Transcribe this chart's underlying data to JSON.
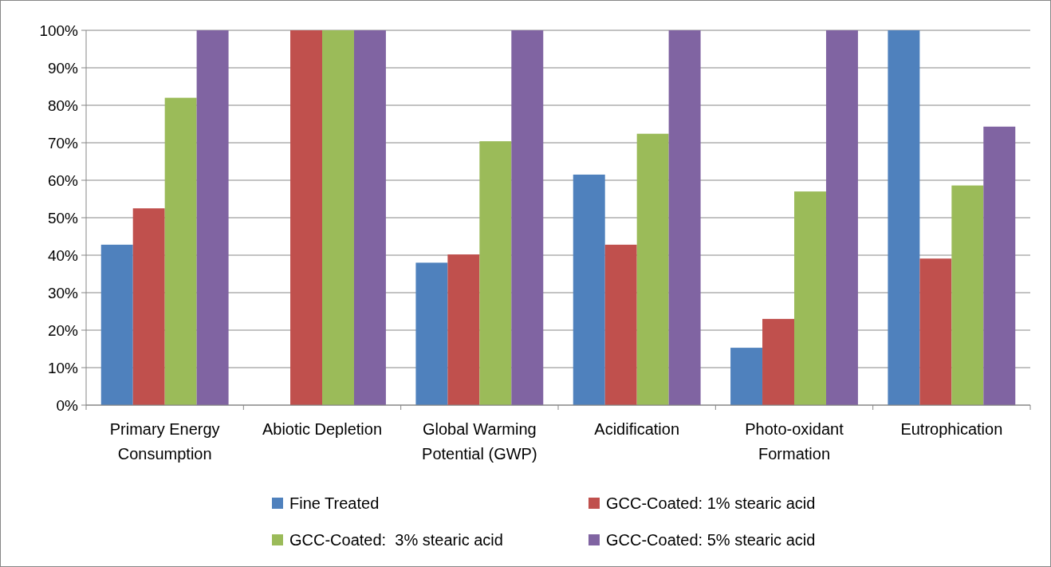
{
  "chart_data": {
    "type": "bar",
    "categories": [
      "Primary Energy Consumption",
      "Abiotic Depletion",
      "Global Warming Potential (GWP)",
      "Acidification",
      "Photo-oxidant Formation",
      "Eutrophication"
    ],
    "series": [
      {
        "name": "Fine Treated",
        "color": "#4f81bd",
        "values": [
          42.8,
          0,
          38,
          61.5,
          15.3,
          100
        ]
      },
      {
        "name": "GCC-Coated: 1% stearic acid",
        "color": "#c0504d",
        "values": [
          52.5,
          100,
          40.2,
          42.8,
          23,
          39.1
        ]
      },
      {
        "name": "GCC-Coated:  3% stearic acid",
        "color": "#9bbb59",
        "values": [
          82,
          100,
          70.4,
          72.4,
          57,
          58.6
        ]
      },
      {
        "name": "GCC-Coated: 5% stearic acid",
        "color": "#8064a2",
        "values": [
          100,
          100,
          100,
          100,
          100,
          74.3
        ]
      }
    ],
    "ylim": [
      0,
      100
    ],
    "yticks": [
      {
        "value": 0,
        "label": "0%"
      },
      {
        "value": 10,
        "label": "10%"
      },
      {
        "value": 20,
        "label": "20%"
      },
      {
        "value": 30,
        "label": "30%"
      },
      {
        "value": 40,
        "label": "40%"
      },
      {
        "value": 50,
        "label": "50%"
      },
      {
        "value": 60,
        "label": "60%"
      },
      {
        "value": 70,
        "label": "70%"
      },
      {
        "value": 80,
        "label": "80%"
      },
      {
        "value": 90,
        "label": "90%"
      },
      {
        "value": 100,
        "label": "100%"
      }
    ],
    "grid": "y",
    "legend": "bottom"
  }
}
